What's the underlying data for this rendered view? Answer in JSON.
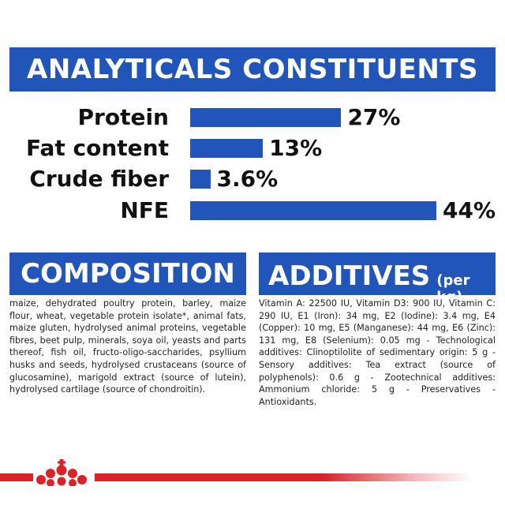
{
  "analytics": {
    "title": "ANALYTICALS CONSTITUENTS",
    "rows": [
      {
        "label": "Protein",
        "value": "27%",
        "percent": 27
      },
      {
        "label": "Fat content",
        "value": "13%",
        "percent": 13
      },
      {
        "label": "Crude fiber",
        "value": "3.6%",
        "percent": 3.6
      },
      {
        "label": "NFE",
        "value": "44%",
        "percent": 44
      }
    ]
  },
  "composition": {
    "title": "COMPOSITION",
    "text": "maize, dehydrated poultry protein, barley, maize flour, wheat, vegetable protein isolate*, animal fats, maize gluten, hydrolysed animal proteins, vegetable fibres, beet pulp, minerals, soya oil, yeasts and parts thereof, fish oil, fructo-oligo-saccharides, psyllium husks and seeds, hydrolysed crustaceans (source of glucosamine), marigold extract (source of lutein), hydrolysed cartilage (source of chondroitin)."
  },
  "additives": {
    "title": "ADDITIVES",
    "unit": "(per kg)",
    "text": "Vitamin A: 22500 IU, Vitamin D3: 900 IU, Vitamin C: 290 IU, E1 (Iron): 34 mg, E2 (Iodine): 3.4 mg, E4 (Copper): 10 mg, E5 (Manganese): 44 mg, E6 (Zinc): 131 mg, E8 (Selenium): 0.05 mg - Technological additives: Clinoptilolite of sedimentary origin: 5 g - Sensory additives: Tea extract (source of polyphenols): 0.6 g - Zootechnical additives: Ammonium chloride: 5 g - Preservatives - Antioxidants."
  },
  "colors": {
    "brand_blue": "#2255b8",
    "brand_red": "#d8232a"
  },
  "footer": {
    "logo_icon": "royal-crown-icon"
  }
}
